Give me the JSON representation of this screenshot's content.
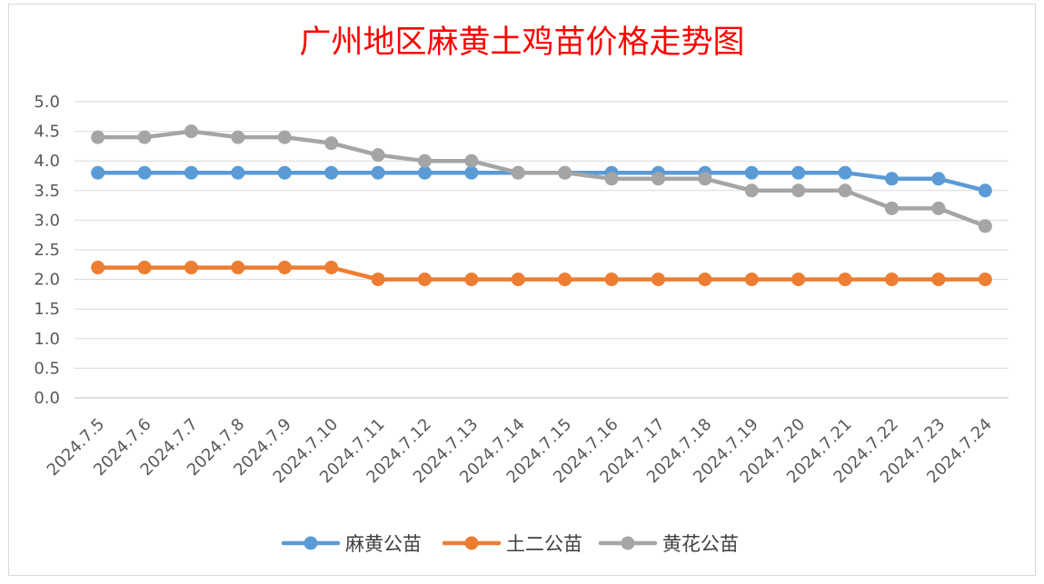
{
  "chart_data": {
    "type": "line",
    "title": "广州地区麻黄土鸡苗价格走势图",
    "xlabel": "",
    "ylabel": "",
    "categories": [
      "2024.7.5",
      "2024.7.6",
      "2024.7.7",
      "2024.7.8",
      "2024.7.9",
      "2024.7.10",
      "2024.7.11",
      "2024.7.12",
      "2024.7.13",
      "2024.7.14",
      "2024.7.15",
      "2024.7.16",
      "2024.7.17",
      "2024.7.18",
      "2024.7.19",
      "2024.7.20",
      "2024.7.21",
      "2024.7.22",
      "2024.7.23",
      "2024.7.24"
    ],
    "ylim": [
      0,
      5
    ],
    "yticks": [
      "0.0",
      "0.5",
      "1.0",
      "1.5",
      "2.0",
      "2.5",
      "3.0",
      "3.5",
      "4.0",
      "4.5",
      "5.0"
    ],
    "grid": true,
    "legend_position": "bottom",
    "series": [
      {
        "name": "麻黄公苗",
        "color": "#5b9bd5",
        "values": [
          3.8,
          3.8,
          3.8,
          3.8,
          3.8,
          3.8,
          3.8,
          3.8,
          3.8,
          3.8,
          3.8,
          3.8,
          3.8,
          3.8,
          3.8,
          3.8,
          3.8,
          3.7,
          3.7,
          3.5
        ]
      },
      {
        "name": "土二公苗",
        "color": "#ed7d31",
        "values": [
          2.2,
          2.2,
          2.2,
          2.2,
          2.2,
          2.2,
          2.0,
          2.0,
          2.0,
          2.0,
          2.0,
          2.0,
          2.0,
          2.0,
          2.0,
          2.0,
          2.0,
          2.0,
          2.0,
          2.0
        ]
      },
      {
        "name": "黄花公苗",
        "color": "#a5a5a5",
        "values": [
          4.4,
          4.4,
          4.5,
          4.4,
          4.4,
          4.3,
          4.1,
          4.0,
          4.0,
          3.8,
          3.8,
          3.7,
          3.7,
          3.7,
          3.5,
          3.5,
          3.5,
          3.2,
          3.2,
          2.9
        ]
      }
    ]
  }
}
